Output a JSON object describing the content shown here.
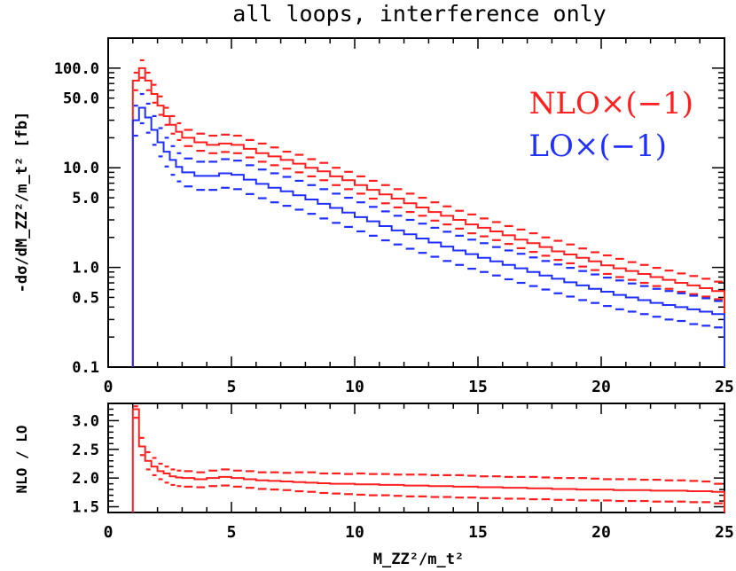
{
  "title": "all loops, interference only",
  "colors": {
    "nlo": "#ff1f1f",
    "lo": "#1f2fff",
    "axis": "#000000"
  },
  "chart_data": [
    {
      "type": "line",
      "panel": "main",
      "ylabel": "-dσ/dM_ZZ²/m_t² [fb]",
      "xlabel": "",
      "xlim": [
        0,
        25
      ],
      "ylim": [
        0.1,
        200
      ],
      "yscale": "log",
      "x_ticks": [
        "0",
        "5",
        "10",
        "15",
        "20",
        "25"
      ],
      "y_ticks": [
        "0.1",
        "0.5",
        "1.0",
        "5.0",
        "10.0",
        "50.0",
        "100.0"
      ],
      "legend": [
        "NLO×(−1)",
        "LO×(−1)"
      ],
      "legend_position": "top-right",
      "bin_edges": [
        1.0,
        1.25,
        1.5,
        1.75,
        2.0,
        2.25,
        2.5,
        2.75,
        3.0,
        3.5,
        4.0,
        4.5,
        5.0,
        5.5,
        6.0,
        6.5,
        7.0,
        7.5,
        8.0,
        8.5,
        9.0,
        9.5,
        10.0,
        10.5,
        11.0,
        11.5,
        12.0,
        12.5,
        13.0,
        13.5,
        14.0,
        14.5,
        15.0,
        15.5,
        16.0,
        16.5,
        17.0,
        17.5,
        18.0,
        18.5,
        19.0,
        19.5,
        20.0,
        20.5,
        21.0,
        21.5,
        22.0,
        22.5,
        23.0,
        23.5,
        24.0,
        24.5,
        25.0
      ],
      "series": [
        {
          "name": "NLO×(−1)",
          "color": "#ff1f1f",
          "values": [
            75,
            100,
            75,
            55,
            42,
            33,
            27,
            23,
            20,
            18,
            17,
            17.5,
            17,
            15.5,
            14,
            13,
            12,
            11,
            10,
            9.2,
            8.2,
            7.5,
            6.7,
            6.0,
            5.4,
            4.9,
            4.4,
            4.0,
            3.6,
            3.3,
            3.0,
            2.7,
            2.5,
            2.3,
            2.1,
            1.9,
            1.75,
            1.6,
            1.45,
            1.35,
            1.25,
            1.15,
            1.05,
            0.98,
            0.92,
            0.86,
            0.8,
            0.75,
            0.7,
            0.66,
            0.62,
            0.58
          ],
          "band_upper": [
            90,
            120,
            90,
            68,
            52,
            40,
            33,
            28,
            24,
            22,
            21,
            21.5,
            21,
            19,
            17.5,
            16,
            14.5,
            13.5,
            12.2,
            11.2,
            10,
            9.1,
            8.2,
            7.4,
            6.7,
            6.1,
            5.5,
            5.0,
            4.5,
            4.1,
            3.7,
            3.4,
            3.1,
            2.85,
            2.6,
            2.4,
            2.2,
            2.0,
            1.85,
            1.7,
            1.55,
            1.42,
            1.32,
            1.22,
            1.13,
            1.06,
            0.99,
            0.93,
            0.87,
            0.82,
            0.77,
            0.72
          ],
          "band_lower": [
            60,
            80,
            60,
            45,
            34,
            27,
            22,
            19,
            16.5,
            14.8,
            14,
            14.4,
            14,
            12.7,
            11.5,
            10.6,
            9.8,
            9.0,
            8.2,
            7.5,
            6.7,
            6.1,
            5.5,
            4.9,
            4.4,
            4.0,
            3.6,
            3.3,
            2.95,
            2.7,
            2.45,
            2.2,
            2.05,
            1.88,
            1.72,
            1.56,
            1.43,
            1.31,
            1.19,
            1.1,
            1.02,
            0.94,
            0.86,
            0.8,
            0.75,
            0.7,
            0.65,
            0.61,
            0.57,
            0.54,
            0.51,
            0.48
          ]
        },
        {
          "name": "LO×(−1)",
          "color": "#1f2fff",
          "values": [
            30,
            40,
            32,
            24,
            18,
            14.5,
            12,
            10.2,
            9.0,
            8.3,
            8.3,
            8.8,
            8.5,
            7.6,
            6.9,
            6.3,
            5.8,
            5.3,
            4.8,
            4.35,
            3.95,
            3.55,
            3.2,
            2.9,
            2.6,
            2.35,
            2.15,
            1.95,
            1.78,
            1.62,
            1.48,
            1.36,
            1.25,
            1.15,
            1.06,
            0.98,
            0.9,
            0.83,
            0.77,
            0.71,
            0.66,
            0.61,
            0.57,
            0.53,
            0.5,
            0.47,
            0.44,
            0.42,
            0.4,
            0.38,
            0.36,
            0.34
          ],
          "band_upper": [
            42,
            55,
            44,
            33,
            25,
            20,
            16.5,
            14,
            12.4,
            11.5,
            11.5,
            12.2,
            11.8,
            10.6,
            9.6,
            8.8,
            8.1,
            7.4,
            6.7,
            6.1,
            5.5,
            5.0,
            4.5,
            4.05,
            3.65,
            3.3,
            3.0,
            2.75,
            2.5,
            2.28,
            2.08,
            1.9,
            1.75,
            1.6,
            1.48,
            1.37,
            1.26,
            1.16,
            1.07,
            0.99,
            0.92,
            0.85,
            0.79,
            0.74,
            0.69,
            0.65,
            0.61,
            0.58,
            0.55,
            0.52,
            0.49,
            0.46
          ],
          "band_lower": [
            21,
            28,
            22.5,
            17,
            13,
            10.3,
            8.5,
            7.3,
            6.5,
            6.0,
            6.0,
            6.3,
            6.1,
            5.45,
            4.95,
            4.5,
            4.15,
            3.8,
            3.45,
            3.1,
            2.8,
            2.55,
            2.3,
            2.08,
            1.87,
            1.7,
            1.54,
            1.4,
            1.28,
            1.16,
            1.06,
            0.97,
            0.9,
            0.83,
            0.76,
            0.7,
            0.65,
            0.6,
            0.55,
            0.51,
            0.47,
            0.44,
            0.41,
            0.38,
            0.36,
            0.34,
            0.32,
            0.3,
            0.29,
            0.27,
            0.26,
            0.25
          ]
        }
      ]
    },
    {
      "type": "line",
      "panel": "ratio",
      "ylabel": "NLO / LO",
      "xlabel": "M_ZZ²/m_t²",
      "xlim": [
        0,
        25
      ],
      "ylim": [
        1.4,
        3.3
      ],
      "x_ticks": [
        "0",
        "5",
        "10",
        "15",
        "20",
        "25"
      ],
      "y_ticks": [
        "1.5",
        "2.0",
        "2.5",
        "3.0"
      ],
      "series": [
        {
          "name": "NLO / LO",
          "color": "#ff1f1f",
          "values": [
            3.2,
            2.55,
            2.3,
            2.2,
            2.12,
            2.08,
            2.03,
            2.01,
            2.0,
            1.98,
            2.0,
            2.02,
            2.0,
            1.98,
            1.96,
            1.95,
            1.94,
            1.93,
            1.92,
            1.91,
            1.9,
            1.9,
            1.89,
            1.89,
            1.88,
            1.88,
            1.87,
            1.87,
            1.86,
            1.86,
            1.85,
            1.85,
            1.84,
            1.84,
            1.83,
            1.83,
            1.82,
            1.82,
            1.81,
            1.81,
            1.8,
            1.8,
            1.8,
            1.79,
            1.79,
            1.79,
            1.78,
            1.78,
            1.78,
            1.77,
            1.77,
            1.76
          ],
          "band_upper": [
            3.25,
            2.7,
            2.45,
            2.35,
            2.25,
            2.2,
            2.15,
            2.13,
            2.12,
            2.1,
            2.13,
            2.15,
            2.13,
            2.12,
            2.1,
            2.1,
            2.09,
            2.1,
            2.1,
            2.08,
            2.08,
            2.07,
            2.08,
            2.07,
            2.07,
            2.06,
            2.06,
            2.06,
            2.05,
            2.05,
            2.05,
            2.04,
            2.03,
            2.03,
            2.02,
            2.02,
            2.02,
            2.01,
            2.0,
            2.0,
            2.0,
            1.99,
            1.98,
            1.98,
            1.98,
            1.97,
            1.97,
            1.96,
            1.96,
            1.95,
            1.94,
            1.9
          ],
          "band_lower": [
            3.05,
            2.4,
            2.15,
            2.05,
            1.98,
            1.92,
            1.88,
            1.86,
            1.85,
            1.84,
            1.86,
            1.87,
            1.85,
            1.83,
            1.81,
            1.8,
            1.79,
            1.77,
            1.76,
            1.74,
            1.73,
            1.72,
            1.71,
            1.7,
            1.7,
            1.69,
            1.68,
            1.68,
            1.67,
            1.67,
            1.66,
            1.66,
            1.65,
            1.65,
            1.64,
            1.64,
            1.63,
            1.63,
            1.62,
            1.62,
            1.61,
            1.61,
            1.61,
            1.6,
            1.6,
            1.6,
            1.59,
            1.59,
            1.59,
            1.58,
            1.58,
            1.56
          ]
        }
      ]
    }
  ]
}
